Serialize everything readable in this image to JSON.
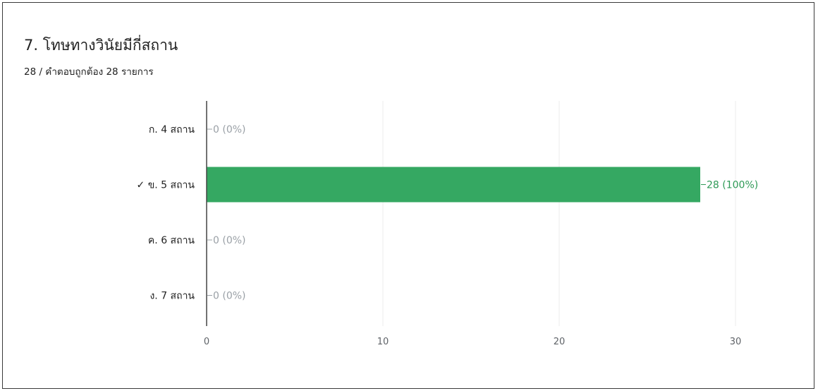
{
  "question": {
    "title": "7. โทษทางวินัยมีกี่สถาน",
    "summary": "28 / คำตอบถูกต้อง 28 รายการ"
  },
  "colors": {
    "correct_bar": "#35a862",
    "correct_label": "#2e9a56",
    "zero_label": "#9aa0a6",
    "axis": "#444444"
  },
  "chart_data": {
    "type": "bar",
    "orientation": "horizontal",
    "categories": [
      "ก. 4 สถาน",
      "✓ ข. 5 สถาน",
      "ค. 6 สถาน",
      "ง. 7 สถาน"
    ],
    "values": [
      0,
      28,
      0,
      0
    ],
    "value_labels": [
      "0 (0%)",
      "28 (100%)",
      "0 (0%)",
      "0 (0%)"
    ],
    "correct_index": 1,
    "xlim": [
      0,
      30
    ],
    "xticks": [
      0,
      10,
      20,
      30
    ],
    "grid": true,
    "title": "",
    "xlabel": "",
    "ylabel": ""
  }
}
